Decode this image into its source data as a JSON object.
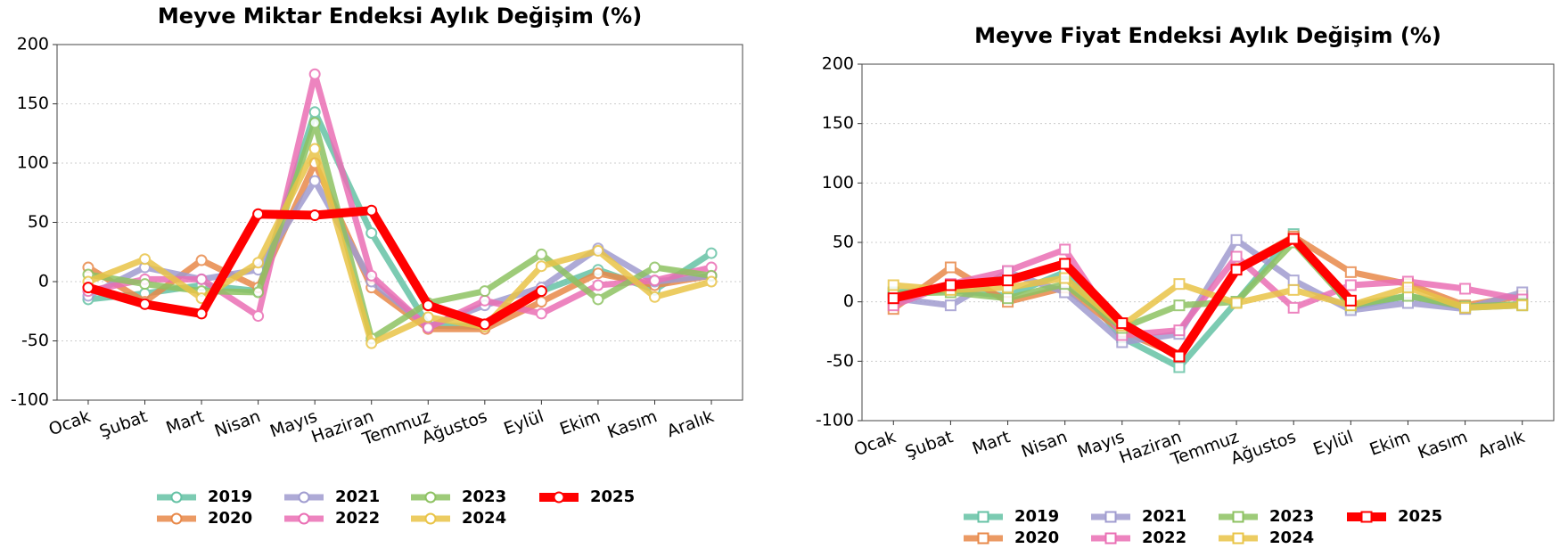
{
  "chart_data": [
    {
      "type": "line",
      "title": "Meyve Miktar Endeksi Aylık Değişim (%)",
      "marker": "circle",
      "grid": true,
      "categories": [
        "Ocak",
        "Şubat",
        "Mart",
        "Nisan",
        "Mayıs",
        "Haziran",
        "Temmuz",
        "Ağustos",
        "Eylül",
        "Ekim",
        "Kasım",
        "Aralık"
      ],
      "ylim": [
        -100,
        200
      ],
      "yticks": [
        -100,
        -50,
        0,
        50,
        100,
        150,
        200
      ],
      "series": [
        {
          "name": "2019",
          "color": "#66c2a5",
          "values": [
            -15,
            -10,
            -3,
            -8,
            143,
            41,
            -37,
            -38,
            -8,
            10,
            -7,
            24
          ]
        },
        {
          "name": "2020",
          "color": "#e8894a",
          "values": [
            12,
            -17,
            18,
            -5,
            100,
            -5,
            -40,
            -40,
            -17,
            7,
            -3,
            5
          ]
        },
        {
          "name": "2021",
          "color": "#a09cd0",
          "values": [
            -12,
            12,
            2,
            10,
            85,
            0,
            -38,
            -20,
            -5,
            28,
            0,
            5
          ]
        },
        {
          "name": "2022",
          "color": "#ea6fb4",
          "values": [
            -8,
            2,
            2,
            -29,
            175,
            5,
            -39,
            -16,
            -27,
            -3,
            1,
            12
          ]
        },
        {
          "name": "2023",
          "color": "#8ec262",
          "values": [
            6,
            -2,
            -8,
            -9,
            134,
            -48,
            -18,
            -8,
            23,
            -15,
            12,
            5
          ]
        },
        {
          "name": "2024",
          "color": "#e9c447",
          "values": [
            0,
            19,
            -14,
            16,
            112,
            -52,
            -30,
            -38,
            13,
            26,
            -13,
            0
          ]
        },
        {
          "name": "2025",
          "color": "#ff0000",
          "values": [
            -5,
            -19,
            -27,
            57,
            56,
            60,
            -20,
            -36,
            -8,
            null,
            null,
            null
          ]
        }
      ]
    },
    {
      "type": "line",
      "title": "Meyve Fiyat Endeksi Aylık Değişim (%)",
      "marker": "square",
      "grid": true,
      "categories": [
        "Ocak",
        "Şubat",
        "Mart",
        "Nisan",
        "Mayıs",
        "Haziran",
        "Temmuz",
        "Ağustos",
        "Eylül",
        "Ekim",
        "Kasım",
        "Aralık"
      ],
      "ylim": [
        -100,
        200
      ],
      "yticks": [
        -100,
        -50,
        0,
        50,
        100,
        150,
        200
      ],
      "series": [
        {
          "name": "2019",
          "color": "#66c2a5",
          "values": [
            8,
            10,
            5,
            25,
            -30,
            -55,
            0,
            57,
            -5,
            5,
            -5,
            -3
          ]
        },
        {
          "name": "2020",
          "color": "#e8894a",
          "values": [
            -6,
            29,
            0,
            12,
            -25,
            -45,
            28,
            55,
            25,
            15,
            -3,
            5
          ]
        },
        {
          "name": "2021",
          "color": "#a09cd0",
          "values": [
            3,
            -3,
            25,
            8,
            -34,
            -27,
            52,
            18,
            -7,
            -1,
            -6,
            8
          ]
        },
        {
          "name": "2022",
          "color": "#ea6fb4",
          "values": [
            -3,
            15,
            26,
            44,
            -28,
            -24,
            38,
            -5,
            14,
            17,
            11,
            2
          ]
        },
        {
          "name": "2023",
          "color": "#8ec262",
          "values": [
            7,
            8,
            3,
            15,
            -22,
            -3,
            0,
            50,
            -3,
            5,
            -4,
            -2
          ]
        },
        {
          "name": "2024",
          "color": "#e9c447",
          "values": [
            14,
            10,
            12,
            20,
            -20,
            15,
            -1,
            10,
            -3,
            12,
            -5,
            -3
          ]
        },
        {
          "name": "2025",
          "color": "#ff0000",
          "values": [
            3,
            14,
            18,
            32,
            -18,
            -46,
            27,
            53,
            1,
            null,
            null,
            null
          ]
        }
      ]
    }
  ]
}
